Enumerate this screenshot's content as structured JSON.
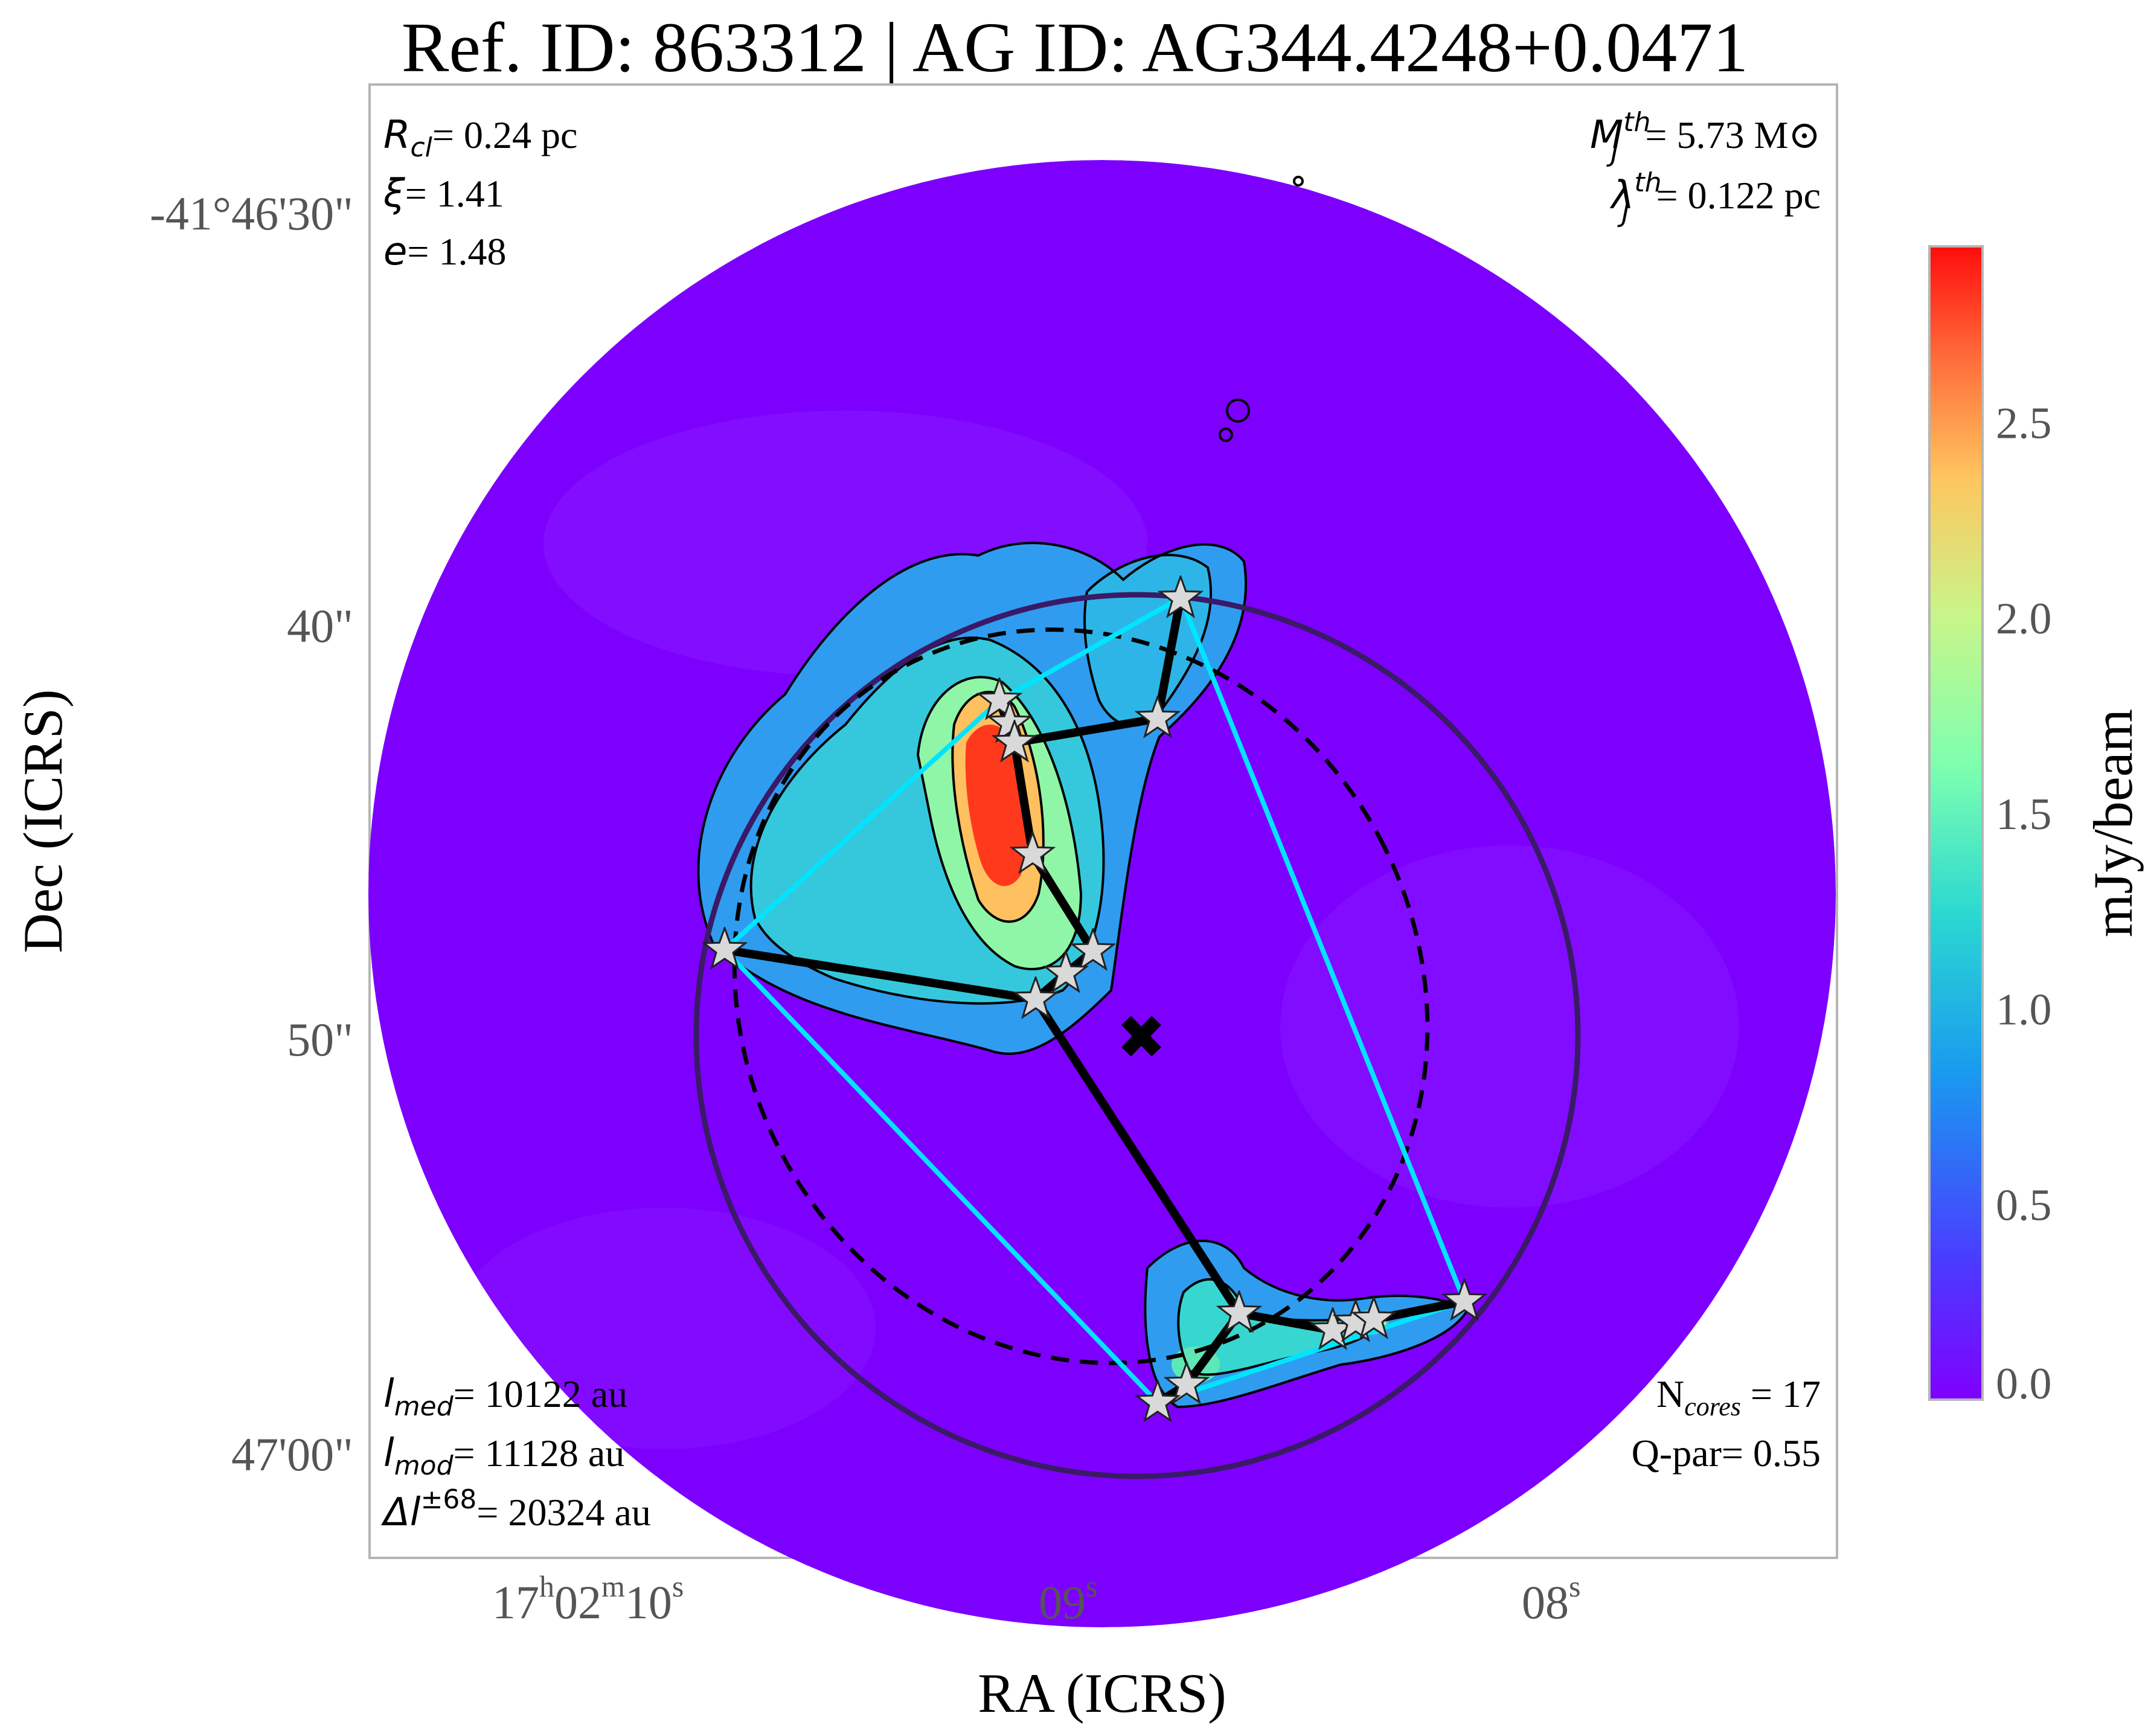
{
  "chart_data": {
    "type": "heatmap",
    "title": "Ref. ID: 863312 | AG ID: AG344.4248+0.0471",
    "xlabel": "RA (ICRS)",
    "ylabel": "Dec (ICRS)",
    "x_ticks": [
      {
        "h": "17",
        "hs": "h",
        "m": "02",
        "ms": "m",
        "s": "10",
        "ss": "s"
      },
      {
        "s": "09",
        "ss": "s"
      },
      {
        "s": "08",
        "ss": "s"
      }
    ],
    "y_ticks": [
      "-41°46'30\"",
      "40\"",
      "50\"",
      "47'00\""
    ],
    "colorbar": {
      "label": "mJy/beam",
      "ticks": [
        "0.0",
        "0.5",
        "1.0",
        "1.5",
        "2.0",
        "2.5"
      ],
      "tick_values": [
        0.0,
        0.5,
        1.0,
        1.5,
        2.0,
        2.5
      ],
      "range": [
        0.0,
        2.95
      ],
      "colormap": "rainbow"
    },
    "annotations": {
      "top_left": [
        {
          "sym": "R",
          "sub": "cl",
          "val": "= 0.24 pc"
        },
        {
          "sym": "ξ",
          "sub": "",
          "val": "= 1.41"
        },
        {
          "sym": "e",
          "sub": "",
          "val": "= 1.48"
        }
      ],
      "top_right": [
        {
          "sym": "M",
          "sub": "J",
          "sup": "th",
          "val": "= 5.73 M⊙"
        },
        {
          "sym": "λ",
          "sub": "J",
          "sup": "th",
          "val": "= 0.122 pc"
        }
      ],
      "bottom_left": [
        {
          "sym": "l",
          "sub": "med",
          "sup": "",
          "val": "= 10122 au"
        },
        {
          "sym": "l",
          "sub": "mod",
          "sup": "",
          "val": "= 11128 au"
        },
        {
          "sym": "Δl",
          "sub": "",
          "sup": "±68",
          "val": "= 20324 au"
        }
      ],
      "bottom_right": [
        {
          "pre": "N",
          "sub": "cores",
          "val": " = 17"
        },
        {
          "pre": "Q-par",
          "sub": "",
          "val": "= 0.55"
        }
      ]
    },
    "colors": {
      "background_map": "#7d00ff",
      "mst_edges": "#000000",
      "convex_hull": "#00e5ff",
      "cluster_circle": "#3a1a66",
      "ellipse": "#000000",
      "core_marker_fill": "#d9d9d9"
    },
    "cores_count": 17
  }
}
